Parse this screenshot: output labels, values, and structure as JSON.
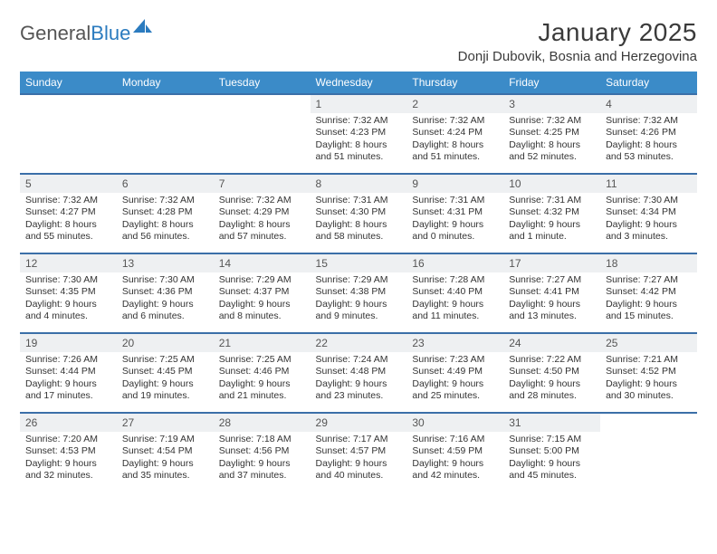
{
  "brand": {
    "part1": "General",
    "part2": "Blue"
  },
  "title": "January 2025",
  "location": "Donji Dubovik, Bosnia and Herzegovina",
  "colors": {
    "header_bg": "#3b8bc8",
    "header_text": "#ffffff",
    "row_border": "#3b6fa8",
    "daynum_bg": "#eef0f2",
    "text": "#333333",
    "brand_gray": "#555555",
    "brand_blue": "#2b7bbf"
  },
  "weekdays": [
    "Sunday",
    "Monday",
    "Tuesday",
    "Wednesday",
    "Thursday",
    "Friday",
    "Saturday"
  ],
  "weeks": [
    [
      {
        "day": "",
        "sunrise": "",
        "sunset": "",
        "daylight1": "",
        "daylight2": "",
        "empty": true
      },
      {
        "day": "",
        "sunrise": "",
        "sunset": "",
        "daylight1": "",
        "daylight2": "",
        "empty": true
      },
      {
        "day": "",
        "sunrise": "",
        "sunset": "",
        "daylight1": "",
        "daylight2": "",
        "empty": true
      },
      {
        "day": "1",
        "sunrise": "Sunrise: 7:32 AM",
        "sunset": "Sunset: 4:23 PM",
        "daylight1": "Daylight: 8 hours",
        "daylight2": "and 51 minutes."
      },
      {
        "day": "2",
        "sunrise": "Sunrise: 7:32 AM",
        "sunset": "Sunset: 4:24 PM",
        "daylight1": "Daylight: 8 hours",
        "daylight2": "and 51 minutes."
      },
      {
        "day": "3",
        "sunrise": "Sunrise: 7:32 AM",
        "sunset": "Sunset: 4:25 PM",
        "daylight1": "Daylight: 8 hours",
        "daylight2": "and 52 minutes."
      },
      {
        "day": "4",
        "sunrise": "Sunrise: 7:32 AM",
        "sunset": "Sunset: 4:26 PM",
        "daylight1": "Daylight: 8 hours",
        "daylight2": "and 53 minutes."
      }
    ],
    [
      {
        "day": "5",
        "sunrise": "Sunrise: 7:32 AM",
        "sunset": "Sunset: 4:27 PM",
        "daylight1": "Daylight: 8 hours",
        "daylight2": "and 55 minutes."
      },
      {
        "day": "6",
        "sunrise": "Sunrise: 7:32 AM",
        "sunset": "Sunset: 4:28 PM",
        "daylight1": "Daylight: 8 hours",
        "daylight2": "and 56 minutes."
      },
      {
        "day": "7",
        "sunrise": "Sunrise: 7:32 AM",
        "sunset": "Sunset: 4:29 PM",
        "daylight1": "Daylight: 8 hours",
        "daylight2": "and 57 minutes."
      },
      {
        "day": "8",
        "sunrise": "Sunrise: 7:31 AM",
        "sunset": "Sunset: 4:30 PM",
        "daylight1": "Daylight: 8 hours",
        "daylight2": "and 58 minutes."
      },
      {
        "day": "9",
        "sunrise": "Sunrise: 7:31 AM",
        "sunset": "Sunset: 4:31 PM",
        "daylight1": "Daylight: 9 hours",
        "daylight2": "and 0 minutes."
      },
      {
        "day": "10",
        "sunrise": "Sunrise: 7:31 AM",
        "sunset": "Sunset: 4:32 PM",
        "daylight1": "Daylight: 9 hours",
        "daylight2": "and 1 minute."
      },
      {
        "day": "11",
        "sunrise": "Sunrise: 7:30 AM",
        "sunset": "Sunset: 4:34 PM",
        "daylight1": "Daylight: 9 hours",
        "daylight2": "and 3 minutes."
      }
    ],
    [
      {
        "day": "12",
        "sunrise": "Sunrise: 7:30 AM",
        "sunset": "Sunset: 4:35 PM",
        "daylight1": "Daylight: 9 hours",
        "daylight2": "and 4 minutes."
      },
      {
        "day": "13",
        "sunrise": "Sunrise: 7:30 AM",
        "sunset": "Sunset: 4:36 PM",
        "daylight1": "Daylight: 9 hours",
        "daylight2": "and 6 minutes."
      },
      {
        "day": "14",
        "sunrise": "Sunrise: 7:29 AM",
        "sunset": "Sunset: 4:37 PM",
        "daylight1": "Daylight: 9 hours",
        "daylight2": "and 8 minutes."
      },
      {
        "day": "15",
        "sunrise": "Sunrise: 7:29 AM",
        "sunset": "Sunset: 4:38 PM",
        "daylight1": "Daylight: 9 hours",
        "daylight2": "and 9 minutes."
      },
      {
        "day": "16",
        "sunrise": "Sunrise: 7:28 AM",
        "sunset": "Sunset: 4:40 PM",
        "daylight1": "Daylight: 9 hours",
        "daylight2": "and 11 minutes."
      },
      {
        "day": "17",
        "sunrise": "Sunrise: 7:27 AM",
        "sunset": "Sunset: 4:41 PM",
        "daylight1": "Daylight: 9 hours",
        "daylight2": "and 13 minutes."
      },
      {
        "day": "18",
        "sunrise": "Sunrise: 7:27 AM",
        "sunset": "Sunset: 4:42 PM",
        "daylight1": "Daylight: 9 hours",
        "daylight2": "and 15 minutes."
      }
    ],
    [
      {
        "day": "19",
        "sunrise": "Sunrise: 7:26 AM",
        "sunset": "Sunset: 4:44 PM",
        "daylight1": "Daylight: 9 hours",
        "daylight2": "and 17 minutes."
      },
      {
        "day": "20",
        "sunrise": "Sunrise: 7:25 AM",
        "sunset": "Sunset: 4:45 PM",
        "daylight1": "Daylight: 9 hours",
        "daylight2": "and 19 minutes."
      },
      {
        "day": "21",
        "sunrise": "Sunrise: 7:25 AM",
        "sunset": "Sunset: 4:46 PM",
        "daylight1": "Daylight: 9 hours",
        "daylight2": "and 21 minutes."
      },
      {
        "day": "22",
        "sunrise": "Sunrise: 7:24 AM",
        "sunset": "Sunset: 4:48 PM",
        "daylight1": "Daylight: 9 hours",
        "daylight2": "and 23 minutes."
      },
      {
        "day": "23",
        "sunrise": "Sunrise: 7:23 AM",
        "sunset": "Sunset: 4:49 PM",
        "daylight1": "Daylight: 9 hours",
        "daylight2": "and 25 minutes."
      },
      {
        "day": "24",
        "sunrise": "Sunrise: 7:22 AM",
        "sunset": "Sunset: 4:50 PM",
        "daylight1": "Daylight: 9 hours",
        "daylight2": "and 28 minutes."
      },
      {
        "day": "25",
        "sunrise": "Sunrise: 7:21 AM",
        "sunset": "Sunset: 4:52 PM",
        "daylight1": "Daylight: 9 hours",
        "daylight2": "and 30 minutes."
      }
    ],
    [
      {
        "day": "26",
        "sunrise": "Sunrise: 7:20 AM",
        "sunset": "Sunset: 4:53 PM",
        "daylight1": "Daylight: 9 hours",
        "daylight2": "and 32 minutes."
      },
      {
        "day": "27",
        "sunrise": "Sunrise: 7:19 AM",
        "sunset": "Sunset: 4:54 PM",
        "daylight1": "Daylight: 9 hours",
        "daylight2": "and 35 minutes."
      },
      {
        "day": "28",
        "sunrise": "Sunrise: 7:18 AM",
        "sunset": "Sunset: 4:56 PM",
        "daylight1": "Daylight: 9 hours",
        "daylight2": "and 37 minutes."
      },
      {
        "day": "29",
        "sunrise": "Sunrise: 7:17 AM",
        "sunset": "Sunset: 4:57 PM",
        "daylight1": "Daylight: 9 hours",
        "daylight2": "and 40 minutes."
      },
      {
        "day": "30",
        "sunrise": "Sunrise: 7:16 AM",
        "sunset": "Sunset: 4:59 PM",
        "daylight1": "Daylight: 9 hours",
        "daylight2": "and 42 minutes."
      },
      {
        "day": "31",
        "sunrise": "Sunrise: 7:15 AM",
        "sunset": "Sunset: 5:00 PM",
        "daylight1": "Daylight: 9 hours",
        "daylight2": "and 45 minutes."
      },
      {
        "day": "",
        "sunrise": "",
        "sunset": "",
        "daylight1": "",
        "daylight2": "",
        "empty": true
      }
    ]
  ]
}
